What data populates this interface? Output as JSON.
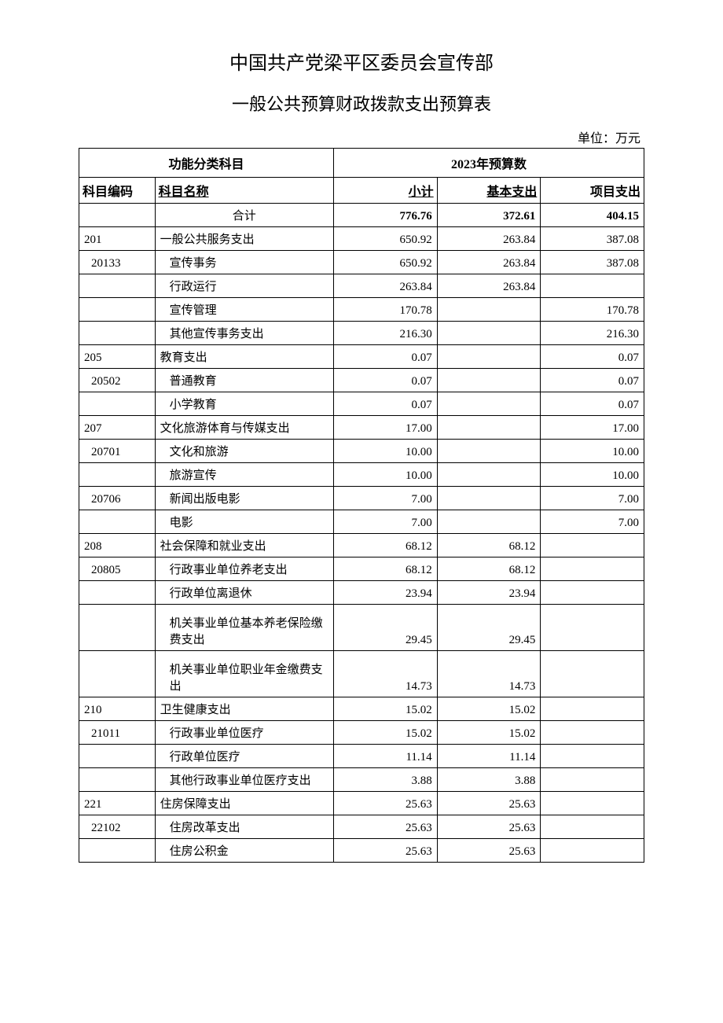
{
  "title_main": "中国共产党梁平区委员会宣传部",
  "title_sub": "一般公共预算财政拨款支出预算表",
  "unit_label": "单位：万元",
  "headers": {
    "function_group": "功能分类科目",
    "budget_group": "2023年预算数",
    "col_code": "科目编码",
    "col_name": "科目名称",
    "col_subtotal": "小计",
    "col_basic": "基本支出",
    "col_project": "项目支出"
  },
  "rows": [
    {
      "code": "",
      "name": "合计",
      "subtotal": "776.76",
      "basic": "372.61",
      "project": "404.15",
      "name_class": "name-center",
      "bold": true
    },
    {
      "code": "201",
      "name": "一般公共服务支出",
      "subtotal": "650.92",
      "basic": "263.84",
      "project": "387.08"
    },
    {
      "code": "20133",
      "name": "宣传事务",
      "subtotal": "650.92",
      "basic": "263.84",
      "project": "387.08",
      "code_indent": 1,
      "name_indent": 1
    },
    {
      "code": "",
      "name": "行政运行",
      "subtotal": "263.84",
      "basic": "263.84",
      "project": "",
      "name_indent": 2
    },
    {
      "code": "",
      "name": "宣传管理",
      "subtotal": "170.78",
      "basic": "",
      "project": "170.78",
      "name_indent": 2
    },
    {
      "code": "",
      "name": "其他宣传事务支出",
      "subtotal": "216.30",
      "basic": "",
      "project": "216.30",
      "name_indent": 2
    },
    {
      "code": "205",
      "name": "教育支出",
      "subtotal": "0.07",
      "basic": "",
      "project": "0.07"
    },
    {
      "code": "20502",
      "name": "普通教育",
      "subtotal": "0.07",
      "basic": "",
      "project": "0.07",
      "code_indent": 1,
      "name_indent": 1
    },
    {
      "code": "",
      "name": "小学教育",
      "subtotal": "0.07",
      "basic": "",
      "project": "0.07",
      "name_indent": 2
    },
    {
      "code": "207",
      "name": "文化旅游体育与传媒支出",
      "subtotal": "17.00",
      "basic": "",
      "project": "17.00"
    },
    {
      "code": "20701",
      "name": "文化和旅游",
      "subtotal": "10.00",
      "basic": "",
      "project": "10.00",
      "code_indent": 1,
      "name_indent": 1
    },
    {
      "code": "",
      "name": "旅游宣传",
      "subtotal": "10.00",
      "basic": "",
      "project": "10.00",
      "name_indent": 2
    },
    {
      "code": "20706",
      "name": "新闻出版电影",
      "subtotal": "7.00",
      "basic": "",
      "project": "7.00",
      "code_indent": 1,
      "name_indent": 1
    },
    {
      "code": "",
      "name": "电影",
      "subtotal": "7.00",
      "basic": "",
      "project": "7.00",
      "name_indent": 2
    },
    {
      "code": "208",
      "name": "社会保障和就业支出",
      "subtotal": "68.12",
      "basic": "68.12",
      "project": ""
    },
    {
      "code": "20805",
      "name": "行政事业单位养老支出",
      "subtotal": "68.12",
      "basic": "68.12",
      "project": "",
      "code_indent": 1,
      "name_indent": 1
    },
    {
      "code": "",
      "name": "行政单位离退休",
      "subtotal": "23.94",
      "basic": "23.94",
      "project": "",
      "name_indent": 2
    },
    {
      "code": "",
      "name": "机关事业单位基本养老保险缴费支出",
      "subtotal": "29.45",
      "basic": "29.45",
      "project": "",
      "name_indent": 2,
      "tall": true
    },
    {
      "code": "",
      "name": "机关事业单位职业年金缴费支出",
      "subtotal": "14.73",
      "basic": "14.73",
      "project": "",
      "name_indent": 2,
      "tall": true
    },
    {
      "code": "210",
      "name": "卫生健康支出",
      "subtotal": "15.02",
      "basic": "15.02",
      "project": ""
    },
    {
      "code": "21011",
      "name": "行政事业单位医疗",
      "subtotal": "15.02",
      "basic": "15.02",
      "project": "",
      "code_indent": 1,
      "name_indent": 1
    },
    {
      "code": "",
      "name": "行政单位医疗",
      "subtotal": "11.14",
      "basic": "11.14",
      "project": "",
      "name_indent": 2
    },
    {
      "code": "",
      "name": "其他行政事业单位医疗支出",
      "subtotal": "3.88",
      "basic": "3.88",
      "project": "",
      "name_indent": 2
    },
    {
      "code": "221",
      "name": "住房保障支出",
      "subtotal": "25.63",
      "basic": "25.63",
      "project": ""
    },
    {
      "code": "22102",
      "name": "住房改革支出",
      "subtotal": "25.63",
      "basic": "25.63",
      "project": "",
      "code_indent": 1,
      "name_indent": 1
    },
    {
      "code": "",
      "name": "住房公积金",
      "subtotal": "25.63",
      "basic": "25.63",
      "project": "",
      "name_indent": 2
    }
  ]
}
